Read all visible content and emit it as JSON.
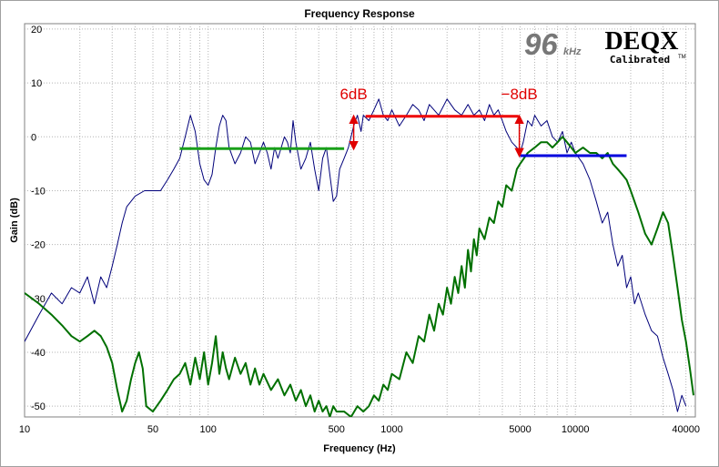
{
  "chart_data": {
    "type": "line",
    "title": "Frequency Response",
    "xlabel": "Frequency (Hz)",
    "ylabel": "Gain (dB)",
    "x_scale": "log",
    "xlim": [
      10,
      45000
    ],
    "ylim": [
      -52,
      21
    ],
    "x_ticks": [
      10,
      50,
      100,
      500,
      1000,
      5000,
      10000,
      40000
    ],
    "y_ticks": [
      20,
      10,
      0,
      -10,
      -20,
      -30,
      -40,
      -50
    ],
    "grid": true,
    "legend": "none",
    "logo": {
      "rate": "96",
      "rate_unit": "kHz",
      "brand": "DEQX",
      "sub": "Calibrated",
      "tm": "TM"
    },
    "series": [
      {
        "color": "#00007a",
        "points": [
          [
            10,
            -38
          ],
          [
            12,
            -33
          ],
          [
            14,
            -29
          ],
          [
            16,
            -31
          ],
          [
            18,
            -28
          ],
          [
            20,
            -29
          ],
          [
            22,
            -26
          ],
          [
            24,
            -31
          ],
          [
            26,
            -26
          ],
          [
            28,
            -28
          ],
          [
            30,
            -24
          ],
          [
            32,
            -20
          ],
          [
            34,
            -16
          ],
          [
            36,
            -13
          ],
          [
            40,
            -11
          ],
          [
            45,
            -10
          ],
          [
            50,
            -10
          ],
          [
            55,
            -10
          ],
          [
            60,
            -8
          ],
          [
            65,
            -6
          ],
          [
            70,
            -4
          ],
          [
            75,
            0
          ],
          [
            80,
            4
          ],
          [
            85,
            1
          ],
          [
            90,
            -5
          ],
          [
            95,
            -8
          ],
          [
            100,
            -9
          ],
          [
            105,
            -7
          ],
          [
            110,
            -2
          ],
          [
            115,
            2
          ],
          [
            120,
            4
          ],
          [
            125,
            3
          ],
          [
            130,
            -2
          ],
          [
            140,
            -5
          ],
          [
            150,
            -3
          ],
          [
            160,
            0
          ],
          [
            170,
            -1
          ],
          [
            180,
            -5
          ],
          [
            190,
            -3
          ],
          [
            200,
            -1
          ],
          [
            210,
            -3
          ],
          [
            220,
            -6
          ],
          [
            230,
            -2
          ],
          [
            240,
            -4
          ],
          [
            250,
            -2
          ],
          [
            260,
            0
          ],
          [
            270,
            -1
          ],
          [
            280,
            -3
          ],
          [
            290,
            3
          ],
          [
            300,
            -1
          ],
          [
            320,
            -6
          ],
          [
            340,
            -4
          ],
          [
            360,
            -1
          ],
          [
            380,
            -6
          ],
          [
            400,
            -10
          ],
          [
            420,
            -4
          ],
          [
            440,
            -2
          ],
          [
            460,
            -7
          ],
          [
            480,
            -12
          ],
          [
            500,
            -11
          ],
          [
            520,
            -6
          ],
          [
            550,
            -4
          ],
          [
            580,
            -2
          ],
          [
            600,
            0
          ],
          [
            620,
            2
          ],
          [
            650,
            4
          ],
          [
            680,
            1
          ],
          [
            700,
            4
          ],
          [
            750,
            3
          ],
          [
            800,
            5
          ],
          [
            850,
            7
          ],
          [
            900,
            4
          ],
          [
            950,
            3
          ],
          [
            1000,
            5
          ],
          [
            1100,
            2
          ],
          [
            1200,
            4
          ],
          [
            1300,
            6
          ],
          [
            1400,
            5
          ],
          [
            1500,
            3
          ],
          [
            1600,
            6
          ],
          [
            1800,
            4
          ],
          [
            2000,
            7
          ],
          [
            2200,
            5
          ],
          [
            2400,
            4
          ],
          [
            2600,
            6
          ],
          [
            2800,
            4
          ],
          [
            3000,
            5
          ],
          [
            3200,
            3
          ],
          [
            3400,
            6
          ],
          [
            3600,
            4
          ],
          [
            3800,
            5
          ],
          [
            4000,
            3
          ],
          [
            4200,
            1
          ],
          [
            4500,
            -1
          ],
          [
            4800,
            -2
          ],
          [
            5000,
            -3
          ],
          [
            5200,
            -1
          ],
          [
            5500,
            3
          ],
          [
            5800,
            2
          ],
          [
            6000,
            4
          ],
          [
            6500,
            2
          ],
          [
            7000,
            3
          ],
          [
            7500,
            0
          ],
          [
            8000,
            -1
          ],
          [
            8500,
            1
          ],
          [
            9000,
            -3
          ],
          [
            9500,
            -1
          ],
          [
            10000,
            -3
          ],
          [
            11000,
            -5
          ],
          [
            12000,
            -8
          ],
          [
            13000,
            -12
          ],
          [
            14000,
            -16
          ],
          [
            15000,
            -14
          ],
          [
            16000,
            -20
          ],
          [
            17000,
            -24
          ],
          [
            18000,
            -22
          ],
          [
            19000,
            -28
          ],
          [
            20000,
            -26
          ],
          [
            21000,
            -31
          ],
          [
            22000,
            -29
          ],
          [
            24000,
            -33
          ],
          [
            26000,
            -36
          ],
          [
            28000,
            -37
          ],
          [
            30000,
            -41
          ],
          [
            32000,
            -44
          ],
          [
            34000,
            -47
          ],
          [
            36000,
            -51
          ],
          [
            38000,
            -48
          ],
          [
            40000,
            -50
          ]
        ]
      },
      {
        "color": "#007000",
        "points": [
          [
            10,
            -29
          ],
          [
            12,
            -31
          ],
          [
            14,
            -33
          ],
          [
            16,
            -35
          ],
          [
            18,
            -37
          ],
          [
            20,
            -38
          ],
          [
            22,
            -37
          ],
          [
            24,
            -36
          ],
          [
            26,
            -37
          ],
          [
            28,
            -39
          ],
          [
            30,
            -42
          ],
          [
            32,
            -47
          ],
          [
            34,
            -51
          ],
          [
            36,
            -49
          ],
          [
            38,
            -45
          ],
          [
            40,
            -42
          ],
          [
            42,
            -40
          ],
          [
            44,
            -43
          ],
          [
            46,
            -50
          ],
          [
            50,
            -51
          ],
          [
            55,
            -49
          ],
          [
            60,
            -47
          ],
          [
            65,
            -45
          ],
          [
            70,
            -44
          ],
          [
            75,
            -42
          ],
          [
            80,
            -46
          ],
          [
            85,
            -41
          ],
          [
            90,
            -45
          ],
          [
            95,
            -40
          ],
          [
            100,
            -46
          ],
          [
            105,
            -42
          ],
          [
            110,
            -37
          ],
          [
            115,
            -44
          ],
          [
            120,
            -40
          ],
          [
            125,
            -43
          ],
          [
            130,
            -45
          ],
          [
            140,
            -41
          ],
          [
            150,
            -44
          ],
          [
            160,
            -42
          ],
          [
            170,
            -46
          ],
          [
            180,
            -43
          ],
          [
            190,
            -46
          ],
          [
            200,
            -44
          ],
          [
            220,
            -47
          ],
          [
            240,
            -45
          ],
          [
            260,
            -48
          ],
          [
            280,
            -46
          ],
          [
            300,
            -49
          ],
          [
            320,
            -47
          ],
          [
            340,
            -50
          ],
          [
            360,
            -48
          ],
          [
            380,
            -51
          ],
          [
            400,
            -49
          ],
          [
            420,
            -51
          ],
          [
            440,
            -50
          ],
          [
            460,
            -52
          ],
          [
            480,
            -50
          ],
          [
            500,
            -51
          ],
          [
            550,
            -51
          ],
          [
            600,
            -52
          ],
          [
            650,
            -50
          ],
          [
            700,
            -51
          ],
          [
            750,
            -50
          ],
          [
            800,
            -48
          ],
          [
            850,
            -49
          ],
          [
            900,
            -46
          ],
          [
            950,
            -47
          ],
          [
            1000,
            -44
          ],
          [
            1100,
            -45
          ],
          [
            1200,
            -40
          ],
          [
            1300,
            -42
          ],
          [
            1400,
            -37
          ],
          [
            1500,
            -38
          ],
          [
            1600,
            -33
          ],
          [
            1700,
            -36
          ],
          [
            1800,
            -31
          ],
          [
            1900,
            -33
          ],
          [
            2000,
            -28
          ],
          [
            2100,
            -31
          ],
          [
            2200,
            -26
          ],
          [
            2300,
            -29
          ],
          [
            2400,
            -24
          ],
          [
            2500,
            -28
          ],
          [
            2600,
            -21
          ],
          [
            2700,
            -25
          ],
          [
            2800,
            -19
          ],
          [
            2900,
            -22
          ],
          [
            3000,
            -17
          ],
          [
            3200,
            -19
          ],
          [
            3400,
            -15
          ],
          [
            3600,
            -16
          ],
          [
            3800,
            -12
          ],
          [
            4000,
            -13
          ],
          [
            4200,
            -9
          ],
          [
            4500,
            -10
          ],
          [
            4800,
            -6
          ],
          [
            5000,
            -5
          ],
          [
            5500,
            -3
          ],
          [
            6000,
            -2
          ],
          [
            6500,
            -1
          ],
          [
            7000,
            -1
          ],
          [
            7500,
            -2
          ],
          [
            8000,
            -1
          ],
          [
            8500,
            0
          ],
          [
            9000,
            -1
          ],
          [
            9500,
            -2
          ],
          [
            10000,
            -3
          ],
          [
            11000,
            -2
          ],
          [
            12000,
            -3
          ],
          [
            13000,
            -3
          ],
          [
            14000,
            -4
          ],
          [
            15000,
            -3
          ],
          [
            16000,
            -5
          ],
          [
            17000,
            -6
          ],
          [
            18000,
            -7
          ],
          [
            19000,
            -8
          ],
          [
            20000,
            -10
          ],
          [
            22000,
            -14
          ],
          [
            24000,
            -18
          ],
          [
            26000,
            -20
          ],
          [
            28000,
            -17
          ],
          [
            30000,
            -14
          ],
          [
            32000,
            -16
          ],
          [
            34000,
            -22
          ],
          [
            36000,
            -28
          ],
          [
            38000,
            -34
          ],
          [
            40000,
            -38
          ],
          [
            42000,
            -43
          ],
          [
            44000,
            -48
          ]
        ]
      }
    ],
    "level_lines": [
      {
        "color": "#1aa01a",
        "x": [
          70,
          550
        ],
        "y": -2.2
      },
      {
        "color": "#ee0000",
        "x": [
          720,
          4900
        ],
        "y": 3.8
      },
      {
        "color": "#0000dd",
        "x": [
          5000,
          19000
        ],
        "y": -3.5
      }
    ],
    "annotations": [
      {
        "text": "6dB",
        "x": 620,
        "y_from": 3.8,
        "y_to": -2.2
      },
      {
        "text": "−8dB",
        "x": 4950,
        "y_from": 3.8,
        "y_to": -3.5
      }
    ]
  }
}
